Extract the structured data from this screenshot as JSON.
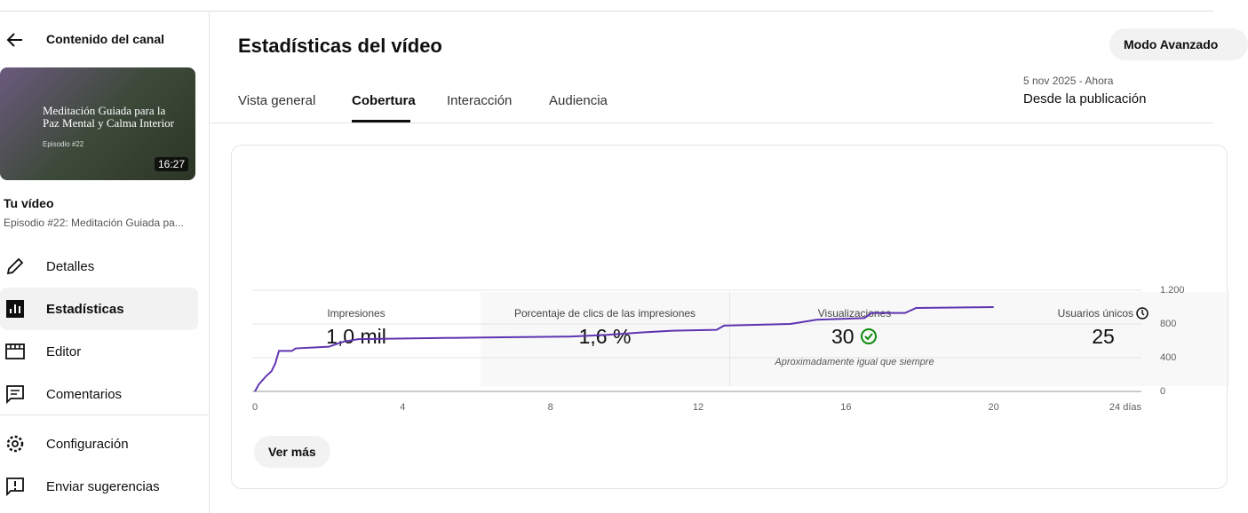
{
  "header": {
    "back_title": "Contenido del canal",
    "title": "Estadísticas del vídeo",
    "advanced_button": "Modo Avanzado"
  },
  "video": {
    "thumbnail_title": "Meditación Guiada para la Paz Mental y Calma Interior",
    "thumbnail_episode": "Episodio #22",
    "duration": "16:27",
    "label": "Tu vídeo",
    "subtitle": "Episodio #22: Meditación Guiada pa..."
  },
  "nav": [
    "Detalles",
    "Estadísticas",
    "Editor",
    "Comentarios",
    "Configuración",
    "Enviar sugerencias"
  ],
  "tabs": [
    "Vista general",
    "Cobertura",
    "Interacción",
    "Audiencia"
  ],
  "date_range": {
    "range": "5 nov 2025 - Ahora",
    "label": "Desde la publicación"
  },
  "metrics": [
    {
      "label": "Impresiones",
      "value": "1,0 mil"
    },
    {
      "label": "Porcentaje de clics de las impresiones",
      "value": "1,6 %"
    },
    {
      "label": "Visualizaciones",
      "value": "30",
      "note": "Aproximadamente igual que siempre"
    },
    {
      "label": "Usuarios únicos",
      "value": "25"
    }
  ],
  "chart_data": {
    "type": "line",
    "x": [
      0,
      0.1,
      0.3,
      0.45,
      0.55,
      0.65,
      1.0,
      1.1,
      2.0,
      2.4,
      2.8,
      6.2,
      8.5,
      9.5,
      10.5,
      11.3,
      12.5,
      12.7,
      14.5,
      15.2,
      16.5,
      16.7,
      17.6,
      17.9,
      20
    ],
    "series": [
      {
        "name": "Impresiones",
        "color": "#5e35b1",
        "values": [
          0,
          80,
          180,
          240,
          330,
          480,
          480,
          510,
          530,
          590,
          620,
          640,
          650,
          670,
          700,
          720,
          730,
          780,
          800,
          850,
          870,
          930,
          930,
          990,
          1000
        ]
      }
    ],
    "xlim": [
      0,
      24
    ],
    "xticks": [
      0,
      4,
      8,
      12,
      16,
      20,
      {
        "value": 24,
        "label": "24 días"
      }
    ],
    "ylim": [
      0,
      1200
    ],
    "yticks": [
      0,
      400,
      800,
      {
        "value": 1200,
        "label": "1.200"
      }
    ],
    "grid": true
  },
  "more_button": "Ver más"
}
